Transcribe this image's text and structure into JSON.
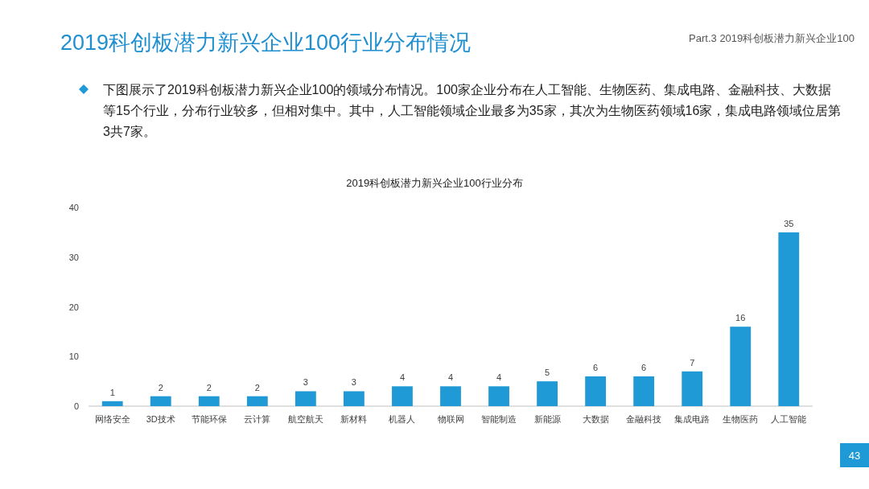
{
  "chart_data": {
    "type": "bar",
    "title": "2019科创板潜力新兴企业100行业分布情况",
    "subtitle": "2019科创板潜力新兴企业100行业分布",
    "annotations": [
      "Part.3 2019科创板潜力新兴企业100",
      "下图展示了2019科创板潜力新兴企业100的领域分布情况。100家企业分布在人工智能、生物医药、集成电路、金融科技、大数据等15个行业，分布行业较多，但相对集中。其中，人工智能领域企业最多为35家，其次为生物医药领域16家，集成电路领域位居第3共7家。",
      "43"
    ],
    "categories": [
      "网络安全",
      "3D技术",
      "节能环保",
      "云计算",
      "航空航天",
      "新材料",
      "机器人",
      "物联网",
      "智能制造",
      "新能源",
      "大数据",
      "金融科技",
      "集成电路",
      "生物医药",
      "人工智能"
    ],
    "values": [
      1,
      2,
      2,
      2,
      3,
      3,
      4,
      4,
      4,
      5,
      6,
      6,
      7,
      16,
      35
    ],
    "color": "#1f9ad6",
    "ylim": [
      0,
      40
    ],
    "yticks": [
      0,
      10,
      20,
      30,
      40
    ],
    "data_labels": true
  }
}
